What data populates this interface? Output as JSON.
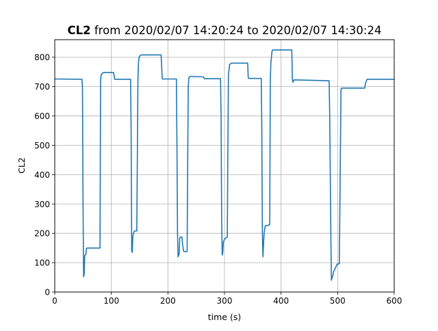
{
  "chart_data": {
    "type": "line",
    "title_bold": "CL2",
    "title_rest": " from 2020/02/07 14:20:24 to 2020/02/07 14:30:24",
    "xlabel": "time (s)",
    "ylabel": "CL2",
    "xlim": [
      0,
      600
    ],
    "ylim": [
      0,
      860
    ],
    "xticks": [
      0,
      100,
      200,
      300,
      400,
      500,
      600
    ],
    "yticks": [
      0,
      100,
      200,
      300,
      400,
      500,
      600,
      700,
      800
    ],
    "grid": true,
    "line_color": "#1f77b4",
    "series": [
      {
        "x": [
          0,
          48,
          49,
          50,
          51,
          52,
          53,
          55,
          56,
          57,
          80,
          81,
          82,
          84,
          86,
          87,
          104,
          106,
          107,
          134,
          135,
          136,
          137,
          138,
          139,
          141,
          145,
          147,
          148,
          149,
          151,
          153,
          154,
          188,
          190,
          191,
          215,
          216,
          217,
          218,
          220,
          221,
          224,
          225,
          226,
          228,
          229,
          234,
          235,
          236,
          237,
          238,
          240,
          241,
          263,
          264,
          265,
          293,
          294,
          295,
          296,
          297,
          298,
          300,
          303,
          305,
          306,
          307,
          309,
          311,
          312,
          341,
          342,
          343,
          365,
          366,
          367,
          368,
          370,
          372,
          378,
          380,
          381,
          382,
          384,
          385,
          417,
          419,
          420,
          421,
          423,
          424,
          485,
          486,
          488,
          489,
          492,
          493,
          498,
          499,
          500,
          502,
          503,
          505,
          506,
          507,
          548,
          549,
          552,
          600
        ],
        "y": [
          726,
          725,
          700,
          300,
          52,
          60,
          125,
          128,
          148,
          150,
          150,
          720,
          740,
          745,
          748,
          748,
          748,
          725,
          725,
          725,
          550,
          140,
          135,
          190,
          200,
          208,
          208,
          720,
          780,
          800,
          806,
          808,
          808,
          808,
          726,
          726,
          726,
          500,
          200,
          120,
          130,
          185,
          188,
          187,
          160,
          138,
          138,
          138,
          450,
          700,
          730,
          733,
          735,
          735,
          733,
          728,
          727,
          727,
          600,
          250,
          126,
          135,
          170,
          180,
          185,
          188,
          500,
          740,
          775,
          778,
          780,
          780,
          730,
          728,
          728,
          550,
          200,
          120,
          200,
          225,
          228,
          230,
          720,
          780,
          820,
          825,
          825,
          825,
          725,
          715,
          723,
          723,
          720,
          600,
          200,
          40,
          60,
          70,
          90,
          95,
          95,
          96,
          96,
          500,
          690,
          695,
          695,
          710,
          725,
          725
        ]
      }
    ]
  }
}
